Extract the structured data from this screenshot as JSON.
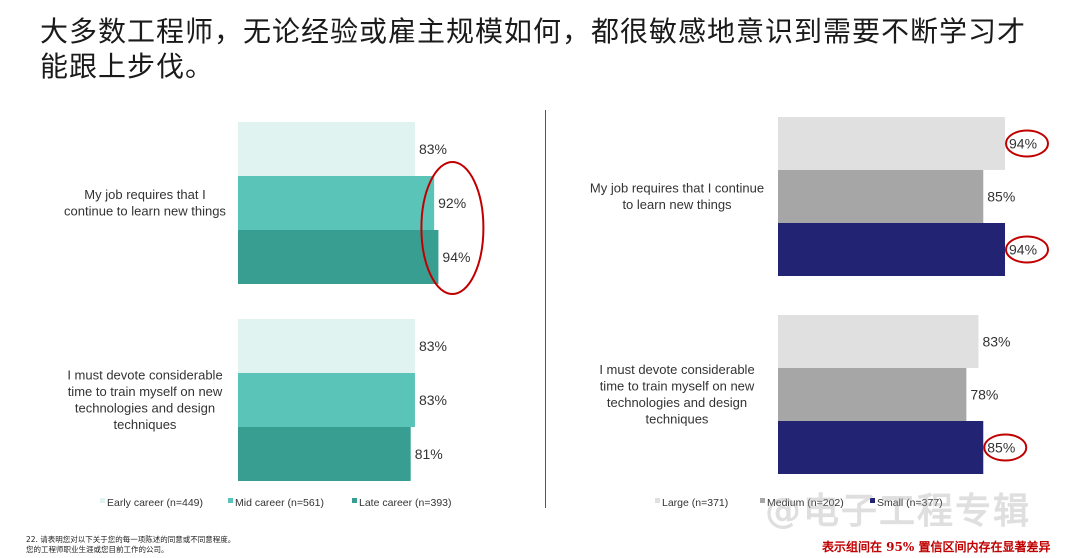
{
  "title": "大多数工程师，无论经验或雇主规模如何，都很敏感地意识到需要不断学习才能跟上步伐。",
  "footnote_line1": "22. 请表明您对以下关于您的每一项陈述的同意或不同意程度。",
  "footnote_line2": "您的工程师职业生涯或您目前工作的公司。",
  "significance_note": "表示组间在 95% 置信区间内存在显著差异",
  "watermark": "@电子工程专辑",
  "chart_data": [
    {
      "type": "bar",
      "orientation": "horizontal",
      "categories": [
        "My job requires that I continue to learn new things",
        "I must devote considerable time to train myself on new technologies and design techniques"
      ],
      "category_lines": [
        [
          "My job requires that I",
          "continue to learn new things"
        ],
        [
          "I must devote considerable",
          "time to train myself on new",
          "technologies and design",
          "techniques"
        ]
      ],
      "series": [
        {
          "name": "Early career (n=449)",
          "color": "#e0f3f1",
          "values": [
            83,
            83
          ]
        },
        {
          "name": "Mid career (n=561)",
          "color": "#5bc4b8",
          "values": [
            92,
            83
          ]
        },
        {
          "name": "Late career (n=393)",
          "color": "#389e92",
          "values": [
            94,
            81
          ]
        }
      ],
      "value_suffix": "%",
      "highlighted": [
        [
          0,
          1
        ],
        [
          0,
          2
        ]
      ],
      "highlight_group": true,
      "legend_position": "bottom"
    },
    {
      "type": "bar",
      "orientation": "horizontal",
      "categories": [
        "My job requires that I continue to learn new things",
        "I must devote considerable time to train myself on new technologies and design techniques"
      ],
      "category_lines": [
        [
          "My job requires that I continue",
          "to learn new things"
        ],
        [
          "I must devote considerable",
          "time to train myself on new",
          "technologies and design",
          "techniques"
        ]
      ],
      "series": [
        {
          "name": "Large (n=371)",
          "color": "#e0e0e0",
          "values": [
            94,
            83
          ]
        },
        {
          "name": "Medium (n=202)",
          "color": "#a6a6a6",
          "values": [
            85,
            78
          ]
        },
        {
          "name": "Small (n=377)",
          "color": "#232373",
          "values": [
            94,
            85
          ]
        }
      ],
      "legend_labels": [
        "Large (n=371)",
        "Medium (n=202)",
        "Small (n=377)"
      ],
      "value_suffix": "%",
      "highlighted": [
        [
          0,
          0
        ],
        [
          0,
          2
        ],
        [
          1,
          2
        ]
      ],
      "highlight_group": false,
      "legend_position": "bottom"
    }
  ]
}
